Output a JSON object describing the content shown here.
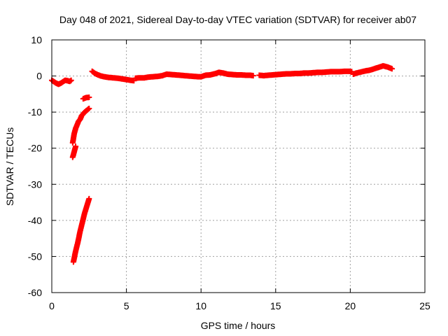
{
  "chart_data": {
    "type": "scatter",
    "title": "Day 048 of 2021, Sidereal Day-to-day VTEC variation (SDTVAR) for receiver ab07",
    "xlabel": "GPS time / hours",
    "ylabel": "SDTVAR / TECUs",
    "xlim": [
      0,
      25
    ],
    "ylim": [
      -60,
      10
    ],
    "xticks": [
      0,
      5,
      10,
      15,
      20,
      25
    ],
    "yticks": [
      -60,
      -50,
      -40,
      -30,
      -20,
      -10,
      0,
      10
    ],
    "grid": true,
    "legend": "none",
    "marker": "plus",
    "color": "#ff0000",
    "series": [
      {
        "segments": [
          [
            [
              0.0,
              -1.2
            ],
            [
              0.15,
              -1.6
            ],
            [
              0.3,
              -2.0
            ],
            [
              0.45,
              -2.3
            ],
            [
              0.6,
              -2.0
            ],
            [
              0.75,
              -1.6
            ],
            [
              0.9,
              -1.2
            ],
            [
              1.05,
              -1.3
            ],
            [
              1.2,
              -1.5
            ],
            [
              1.3,
              -1.2
            ]
          ],
          [
            [
              1.4,
              -18.5
            ],
            [
              1.5,
              -16.0
            ],
            [
              1.6,
              -14.5
            ],
            [
              1.7,
              -13.5
            ],
            [
              1.8,
              -12.5
            ],
            [
              1.9,
              -12.0
            ],
            [
              2.0,
              -11.0
            ],
            [
              2.1,
              -10.5
            ],
            [
              2.2,
              -10.0
            ],
            [
              2.35,
              -9.5
            ],
            [
              2.5,
              -9.0
            ]
          ],
          [
            [
              1.4,
              -22.5
            ],
            [
              1.5,
              -21.0
            ],
            [
              1.6,
              -19.5
            ]
          ],
          [
            [
              2.1,
              -6.3
            ],
            [
              2.3,
              -6.0
            ],
            [
              2.5,
              -5.9
            ]
          ],
          [
            [
              1.45,
              -51.5
            ],
            [
              1.6,
              -48.5
            ],
            [
              1.75,
              -46.0
            ],
            [
              1.9,
              -43.0
            ],
            [
              2.05,
              -40.5
            ],
            [
              2.2,
              -38.0
            ],
            [
              2.35,
              -36.0
            ],
            [
              2.5,
              -34.0
            ]
          ],
          [
            [
              2.7,
              1.3
            ],
            [
              2.9,
              0.7
            ],
            [
              3.1,
              0.3
            ],
            [
              3.3,
              0.0
            ],
            [
              3.5,
              -0.2
            ],
            [
              3.8,
              -0.4
            ],
            [
              4.1,
              -0.5
            ],
            [
              4.4,
              -0.6
            ],
            [
              4.7,
              -0.8
            ],
            [
              5.0,
              -1.0
            ],
            [
              5.3,
              -1.2
            ],
            [
              5.5,
              -1.3
            ]
          ],
          [
            [
              5.6,
              -0.6
            ],
            [
              5.9,
              -0.5
            ],
            [
              6.2,
              -0.5
            ],
            [
              6.5,
              -0.3
            ],
            [
              6.8,
              -0.2
            ],
            [
              7.1,
              -0.1
            ],
            [
              7.4,
              0.1
            ],
            [
              7.7,
              0.5
            ],
            [
              8.0,
              0.4
            ],
            [
              8.3,
              0.3
            ],
            [
              8.6,
              0.2
            ],
            [
              8.9,
              0.1
            ],
            [
              9.2,
              0.0
            ],
            [
              9.5,
              -0.1
            ],
            [
              9.8,
              -0.2
            ],
            [
              10.0,
              -0.2
            ],
            [
              10.3,
              0.2
            ],
            [
              10.6,
              0.3
            ],
            [
              10.9,
              0.6
            ],
            [
              11.2,
              1.0
            ],
            [
              11.5,
              0.8
            ],
            [
              11.8,
              0.5
            ],
            [
              12.1,
              0.4
            ],
            [
              12.4,
              0.3
            ],
            [
              12.7,
              0.3
            ],
            [
              13.0,
              0.2
            ],
            [
              13.3,
              0.2
            ],
            [
              13.5,
              0.1
            ]
          ],
          [
            [
              13.9,
              0.2
            ],
            [
              14.2,
              0.1
            ],
            [
              14.5,
              0.2
            ],
            [
              14.8,
              0.3
            ],
            [
              15.1,
              0.4
            ],
            [
              15.4,
              0.5
            ],
            [
              15.7,
              0.6
            ],
            [
              16.0,
              0.6
            ],
            [
              16.3,
              0.7
            ],
            [
              16.6,
              0.7
            ],
            [
              16.9,
              0.8
            ],
            [
              17.2,
              0.8
            ],
            [
              17.5,
              0.9
            ],
            [
              17.8,
              1.0
            ],
            [
              18.1,
              1.0
            ],
            [
              18.4,
              1.1
            ],
            [
              18.7,
              1.2
            ],
            [
              19.0,
              1.2
            ],
            [
              19.3,
              1.2
            ],
            [
              19.6,
              1.3
            ],
            [
              19.9,
              1.3
            ],
            [
              20.1,
              1.2
            ]
          ],
          [
            [
              20.2,
              0.5
            ],
            [
              20.4,
              0.8
            ],
            [
              20.6,
              1.0
            ],
            [
              20.8,
              1.2
            ],
            [
              21.0,
              1.4
            ],
            [
              21.3,
              1.6
            ],
            [
              21.6,
              2.0
            ],
            [
              21.9,
              2.4
            ],
            [
              22.2,
              2.8
            ],
            [
              22.5,
              2.5
            ],
            [
              22.8,
              2.0
            ]
          ]
        ]
      }
    ]
  }
}
